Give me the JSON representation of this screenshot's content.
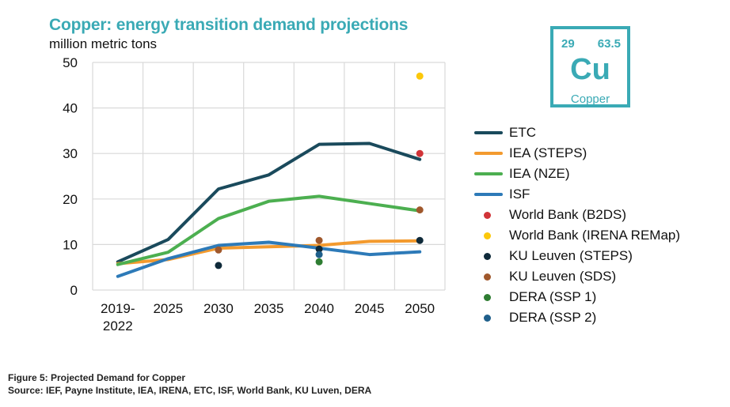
{
  "chart_data": {
    "type": "line",
    "title": "Copper: energy transition demand projections",
    "ylabel": "million metric tons",
    "categories": [
      "2019-2022",
      "2025",
      "2030",
      "2035",
      "2040",
      "2045",
      "2050"
    ],
    "ylim": [
      0,
      50
    ],
    "yticks": [
      "0",
      "10",
      "20",
      "30",
      "40",
      "50"
    ],
    "grid": true,
    "legend_position": "right",
    "line_series": [
      {
        "name": "ETC",
        "color": "#1a4a5c",
        "values": [
          6.2,
          11.1,
          22.2,
          25.3,
          32.0,
          32.2,
          28.7
        ]
      },
      {
        "name": "IEA (STEPS)",
        "color": "#f39a2e",
        "values": [
          5.8,
          6.7,
          9.2,
          9.5,
          9.8,
          10.7,
          10.8
        ]
      },
      {
        "name": "IEA (NZE)",
        "color": "#4caf50",
        "values": [
          5.6,
          8.3,
          15.7,
          19.5,
          20.6,
          19.0,
          17.4
        ]
      },
      {
        "name": "ISF",
        "color": "#2d7ab8",
        "values": [
          3.0,
          6.9,
          9.8,
          10.5,
          9.2,
          7.8,
          8.4
        ]
      }
    ],
    "point_series": [
      {
        "name": "World Bank (B2DS)",
        "color": "#d13438",
        "points": [
          {
            "x": "2050",
            "y": 30.0
          }
        ]
      },
      {
        "name": "World Bank (IRENA REMap)",
        "color": "#fcc80a",
        "points": [
          {
            "x": "2050",
            "y": 47.0
          }
        ]
      },
      {
        "name": "KU Leuven (STEPS)",
        "color": "#0f2a3a",
        "points": [
          {
            "x": "2030",
            "y": 5.4
          },
          {
            "x": "2040",
            "y": 9.0
          },
          {
            "x": "2050",
            "y": 10.9
          }
        ]
      },
      {
        "name": "KU Leuven (SDS)",
        "color": "#a0582c",
        "points": [
          {
            "x": "2030",
            "y": 8.8
          },
          {
            "x": "2040",
            "y": 10.9
          },
          {
            "x": "2050",
            "y": 17.6
          }
        ]
      },
      {
        "name": "DERA (SSP 1)",
        "color": "#2e7d32",
        "points": [
          {
            "x": "2040",
            "y": 6.2
          }
        ]
      },
      {
        "name": "DERA (SSP 2)",
        "color": "#1f5f8b",
        "points": [
          {
            "x": "2040",
            "y": 7.8
          }
        ]
      }
    ]
  },
  "element_tile": {
    "number": "29",
    "mass": "63.5",
    "symbol": "Cu",
    "name": "Copper"
  },
  "caption": {
    "figure": "Figure 5: Projected Demand for Copper",
    "source": "Source: IEF, Payne Institute, IEA, IRENA, ETC, ISF, World Bank, KU Luven, DERA"
  }
}
